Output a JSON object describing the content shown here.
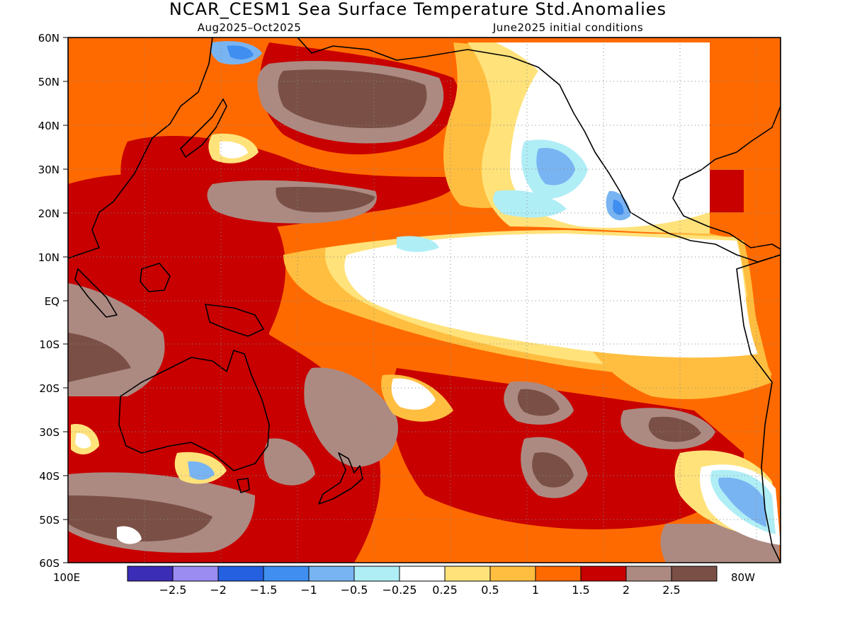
{
  "title": "NCAR_CESM1 Sea Surface Temperature Std.Anomalies",
  "period": "Aug2025–Oct2025",
  "initial_conditions": "June2025 initial conditions",
  "lat_labels": [
    "60N",
    "50N",
    "40N",
    "30N",
    "20N",
    "10N",
    "EQ",
    "10S",
    "20S",
    "30S",
    "40S",
    "50S",
    "60S"
  ],
  "lon_label_left": "100E",
  "lon_label_right": "80W",
  "colorbar": {
    "colors": [
      "#3b2db5",
      "#9b8cf2",
      "#2560e0",
      "#3f8ef0",
      "#79b4f2",
      "#b0eef6",
      "#ffffff",
      "#ffe27a",
      "#ffbe40",
      "#ff6a00",
      "#c80000",
      "#ac8a82",
      "#7a5046"
    ],
    "labels": [
      "−2.5",
      "−2",
      "−1.5",
      "−1",
      "−0.5",
      "−0.25",
      "0.25",
      "0.5",
      "1",
      "1.5",
      "2",
      "2.5"
    ]
  }
}
